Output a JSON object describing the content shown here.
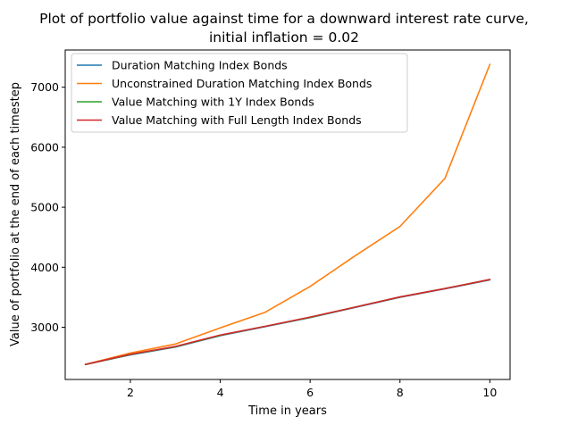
{
  "chart_data": {
    "type": "line",
    "title": "Plot of portfolio value against time for a downward interest rate curve,",
    "subtitle": "initial inflation = 0.02",
    "xlabel": "Time in years",
    "ylabel": "Value of portfolio at the end of each timestep",
    "xlim": [
      0.55,
      10.45
    ],
    "ylim": [
      2130,
      7620
    ],
    "xticks": [
      2,
      4,
      6,
      8,
      10
    ],
    "yticks": [
      3000,
      4000,
      5000,
      6000,
      7000
    ],
    "grid": false,
    "legend_position": "top-left",
    "x": [
      1,
      2,
      3,
      4,
      5,
      6,
      7,
      8,
      9,
      10
    ],
    "series": [
      {
        "name": "Duration Matching Index Bonds",
        "color": "#1f77b4",
        "values": [
          2380,
          2540,
          2670,
          2860,
          3010,
          3160,
          3330,
          3500,
          3640,
          3790
        ]
      },
      {
        "name": "Unconstrained Duration Matching Index Bonds",
        "color": "#ff7f0e",
        "values": [
          2380,
          2570,
          2720,
          2990,
          3250,
          3680,
          4190,
          4680,
          5480,
          7380
        ]
      },
      {
        "name": "Value Matching with 1Y Index Bonds",
        "color": "#2ca02c",
        "values": [
          2380,
          2545,
          2675,
          2865,
          3015,
          3165,
          3335,
          3505,
          3645,
          3795
        ]
      },
      {
        "name": "Value Matching with Full Length Index Bonds",
        "color": "#d62728",
        "values": [
          2380,
          2550,
          2680,
          2870,
          3015,
          3170,
          3335,
          3505,
          3645,
          3795
        ]
      }
    ]
  }
}
